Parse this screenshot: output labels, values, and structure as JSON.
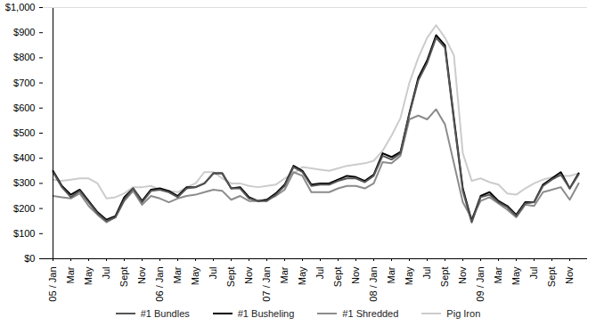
{
  "chart_data": {
    "type": "line",
    "categories": [
      "05 / Jan",
      null,
      "Mar",
      null,
      "May",
      null,
      "Jul",
      null,
      "Sept",
      null,
      "Nov",
      null,
      "06 / Jan",
      null,
      "Mar",
      null,
      "May",
      null,
      "Jul",
      null,
      "Sept",
      null,
      "Nov",
      null,
      "07 / Jan",
      null,
      "Mar",
      null,
      "May",
      null,
      "Jul",
      null,
      "Sept",
      null,
      "Nov",
      null,
      "08 / Jan",
      null,
      "Mar",
      null,
      "May",
      null,
      "Jul",
      null,
      "Sept",
      null,
      "Nov",
      null,
      "09 / Jan",
      null,
      "Mar",
      null,
      "May",
      null,
      "Jul",
      null,
      "Sept",
      null,
      "Nov",
      null
    ],
    "series": [
      {
        "name": "#1 Bundles",
        "color": "#555555",
        "values": [
          345,
          285,
          245,
          270,
          225,
          180,
          150,
          165,
          235,
          280,
          225,
          270,
          275,
          265,
          245,
          280,
          285,
          300,
          340,
          340,
          280,
          280,
          240,
          230,
          230,
          255,
          290,
          365,
          345,
          290,
          295,
          295,
          310,
          320,
          320,
          305,
          330,
          410,
          395,
          420,
          575,
          710,
          780,
          880,
          840,
          550,
          270,
          145,
          245,
          255,
          225,
          205,
          170,
          220,
          225,
          290,
          315,
          335,
          280,
          335
        ]
      },
      {
        "name": "#1 Busheling",
        "color": "#000000",
        "values": [
          350,
          290,
          255,
          275,
          230,
          185,
          155,
          170,
          245,
          280,
          230,
          275,
          280,
          270,
          250,
          285,
          285,
          300,
          340,
          340,
          280,
          285,
          245,
          230,
          235,
          260,
          295,
          370,
          350,
          295,
          300,
          300,
          315,
          330,
          325,
          310,
          335,
          420,
          405,
          425,
          580,
          720,
          790,
          890,
          850,
          560,
          280,
          150,
          250,
          265,
          230,
          210,
          175,
          225,
          225,
          295,
          320,
          345,
          280,
          340
        ]
      },
      {
        "name": "#1 Shredded",
        "color": "#8c8c8c",
        "values": [
          250,
          245,
          240,
          260,
          210,
          175,
          145,
          165,
          230,
          270,
          215,
          250,
          240,
          225,
          240,
          250,
          255,
          265,
          275,
          270,
          235,
          250,
          230,
          230,
          235,
          250,
          275,
          345,
          330,
          265,
          265,
          265,
          280,
          290,
          290,
          280,
          300,
          385,
          380,
          410,
          555,
          570,
          555,
          595,
          535,
          380,
          225,
          160,
          230,
          245,
          220,
          195,
          165,
          215,
          210,
          265,
          275,
          285,
          235,
          300
        ]
      },
      {
        "name": "Pig Iron",
        "color": "#cccccc",
        "values": [
          315,
          310,
          315,
          320,
          320,
          300,
          240,
          245,
          260,
          285,
          285,
          290,
          275,
          270,
          265,
          285,
          300,
          345,
          345,
          320,
          300,
          300,
          290,
          285,
          290,
          295,
          320,
          340,
          365,
          360,
          355,
          350,
          360,
          370,
          375,
          380,
          390,
          430,
          490,
          560,
          700,
          800,
          880,
          930,
          880,
          810,
          420,
          310,
          320,
          305,
          295,
          260,
          255,
          280,
          300,
          315,
          325,
          330,
          330,
          340
        ]
      }
    ],
    "ylim": [
      0,
      1000
    ],
    "yticks": [
      {
        "value": 0,
        "label": "$0"
      },
      {
        "value": 100,
        "label": "$100"
      },
      {
        "value": 200,
        "label": "$200"
      },
      {
        "value": 300,
        "label": "$300"
      },
      {
        "value": 400,
        "label": "$400"
      },
      {
        "value": 500,
        "label": "$500"
      },
      {
        "value": 600,
        "label": "$600"
      },
      {
        "value": 700,
        "label": "$700"
      },
      {
        "value": 800,
        "label": "$800"
      },
      {
        "value": 900,
        "label": "$900"
      },
      {
        "value": 1000,
        "label": "$1,000"
      }
    ],
    "grid": false,
    "legend": "bottom"
  }
}
